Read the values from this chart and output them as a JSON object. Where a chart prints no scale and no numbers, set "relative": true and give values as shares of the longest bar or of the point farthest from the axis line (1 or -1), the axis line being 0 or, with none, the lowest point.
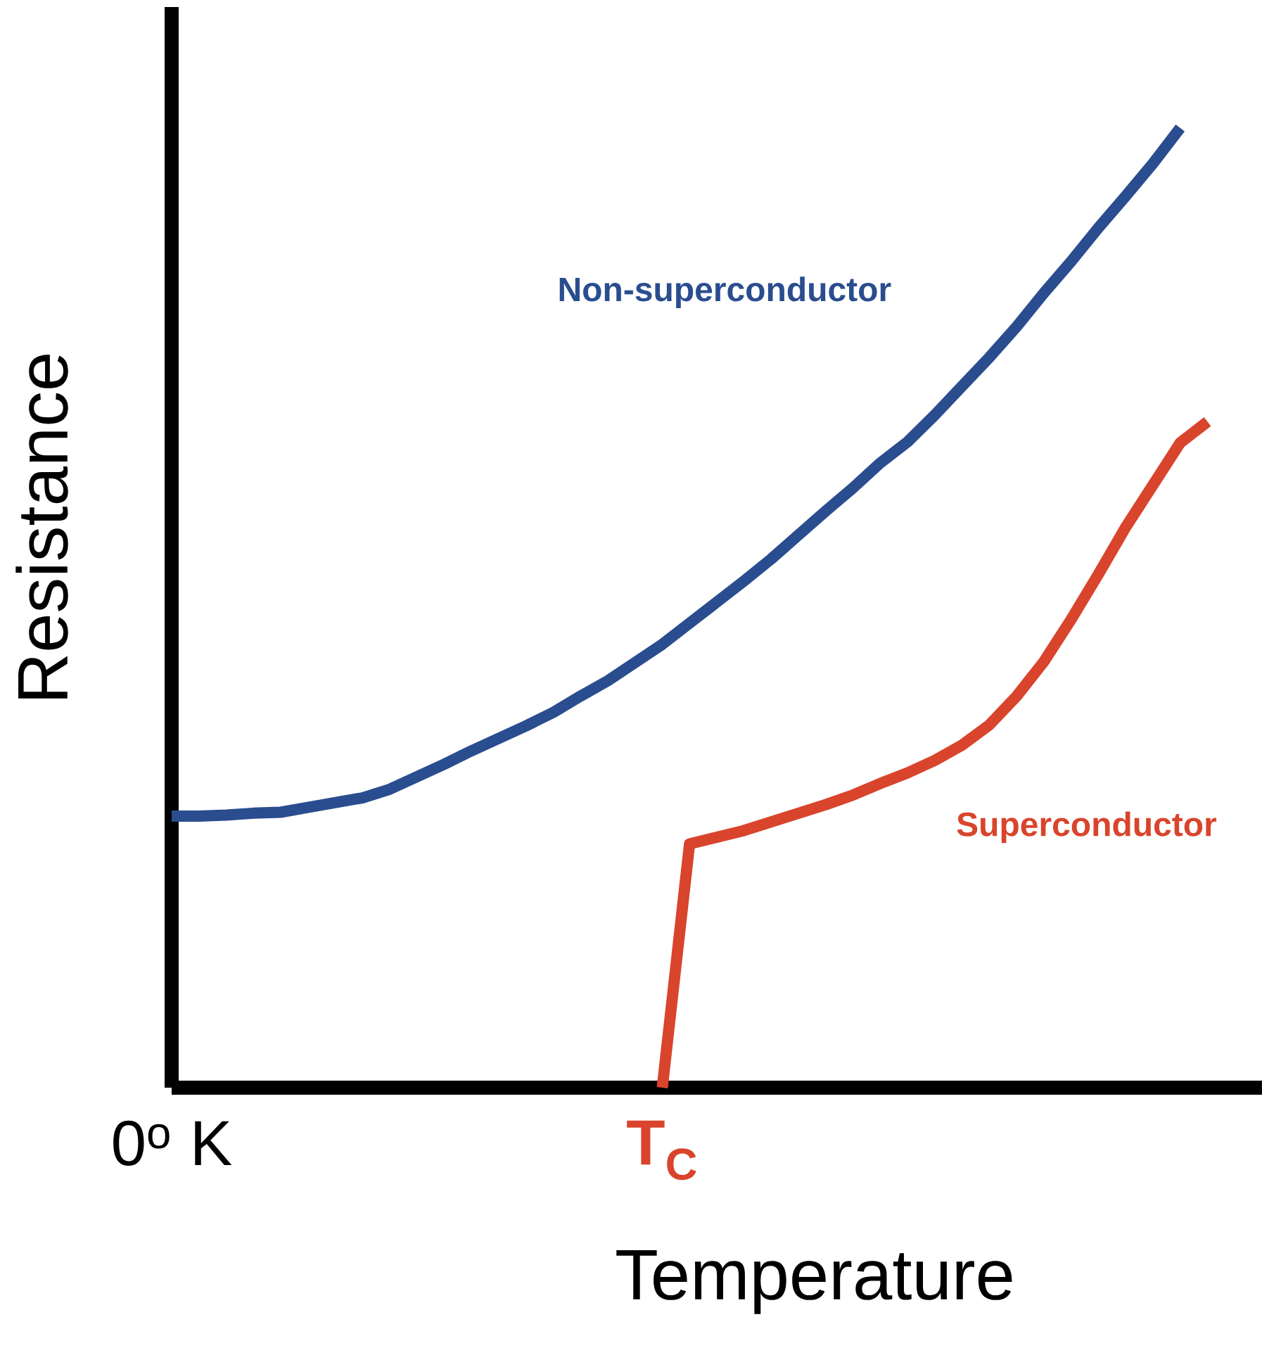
{
  "chart_data": {
    "type": "line",
    "relative": true,
    "xlabel": "Temperature",
    "ylabel": "Resistance",
    "categories": [
      "0$^{o}$ K",
      null,
      null,
      null,
      null,
      null,
      null,
      null,
      null,
      null,
      null,
      null,
      null,
      null,
      null,
      null,
      null,
      null,
      "T$_{C}$",
      null,
      null,
      null,
      null,
      null,
      null,
      null,
      null,
      null,
      null,
      null,
      null,
      null,
      null,
      null,
      null,
      null,
      null,
      null,
      null,
      null
    ],
    "legend": false,
    "grid": false,
    "marker": "none",
    "line_style": "solid",
    "series": [
      {
        "name": "Non-superconductor",
        "color": "#2a4d8f",
        "values": [
          0.283,
          0.283,
          0.284,
          0.286,
          0.287,
          0.292,
          0.297,
          0.302,
          0.311,
          0.324,
          0.337,
          0.351,
          0.364,
          0.377,
          0.391,
          0.408,
          0.424,
          0.443,
          0.462,
          0.484,
          0.506,
          0.528,
          0.551,
          0.576,
          0.601,
          0.625,
          0.651,
          0.673,
          0.701,
          0.731,
          0.761,
          0.793,
          0.828,
          0.861,
          0.896,
          0.929,
          0.963,
          1,
          null,
          null
        ]
      },
      {
        "name": "Superconductor",
        "color": "#d9442c",
        "values": [
          null,
          null,
          null,
          null,
          null,
          null,
          null,
          null,
          null,
          null,
          null,
          null,
          null,
          null,
          null,
          null,
          null,
          null,
          0,
          0.254,
          0.261,
          0.268,
          0.277,
          0.286,
          0.295,
          0.305,
          0.317,
          0.328,
          0.341,
          0.357,
          0.378,
          0.408,
          0.444,
          0.488,
          0.535,
          0.584,
          0.628,
          0.672,
          0.694,
          null
        ]
      }
    ]
  }
}
